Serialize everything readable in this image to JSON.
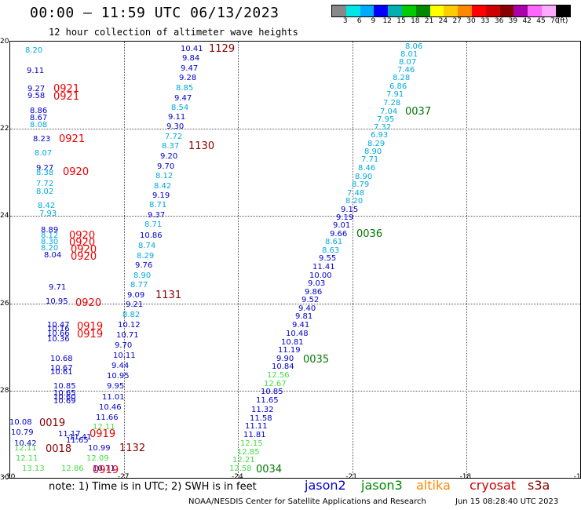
{
  "header": {
    "title": "00:00 – 11:59 UTC 06/13/2023",
    "subtitle": "12 hour collection of altimeter wave heights"
  },
  "legend": {
    "unit": "(ft)",
    "colors": [
      "#888888",
      "#00e5e5",
      "#00aaff",
      "#0000ff",
      "#00b0b0",
      "#00cc00",
      "#008800",
      "#ffff00",
      "#ffcc00",
      "#ff8800",
      "#ff0000",
      "#cc0000",
      "#880000",
      "#aa00aa",
      "#ff66ff",
      "#ffaaff",
      "#000000"
    ],
    "labels": [
      "3",
      "6",
      "9",
      "12",
      "15",
      "18",
      "21",
      "24",
      "27",
      "30",
      "33",
      "36",
      "39",
      "42",
      "45",
      "70",
      "(ft)"
    ]
  },
  "axes": {
    "y_ticks": [
      "20",
      "22",
      "24",
      "26",
      "28",
      "30"
    ],
    "x_ticks": [
      "-30",
      "-27",
      "-24",
      "-21",
      "-18",
      "-15"
    ]
  },
  "footer": {
    "note": "note:  1) Time is in UTC;  2) SWH is in feet",
    "satellites": [
      {
        "name": "jason2",
        "color": "#0000cc"
      },
      {
        "name": "jason3",
        "color": "#008800"
      },
      {
        "name": "altika",
        "color": "#ff8800"
      },
      {
        "name": "cryosat",
        "color": "#cc0000"
      },
      {
        "name": "s3a",
        "color": "#880000"
      }
    ],
    "credit": "NOAA/NESDIS Center for Satellite Applications and Research",
    "timestamp": "Jun 15 08:28:40 UTC 2023"
  },
  "colors": {
    "c3": "#00aadd",
    "c2": "#0000cc",
    "c1": "#44dd44",
    "red": "#ee0000",
    "dred": "#880000",
    "green": "#007700"
  },
  "points": [
    {
      "t": "8.20",
      "c": "c3"
    },
    {
      "t": "9.11",
      "c": "c2"
    },
    {
      "t": "9.27",
      "c": "c2"
    },
    {
      "t": "9.58",
      "c": "c2"
    },
    {
      "t": "0921",
      "c": "red"
    },
    {
      "t": "0921",
      "c": "red"
    },
    {
      "t": "8.86",
      "c": "c2"
    },
    {
      "t": "8.67",
      "c": "c2"
    },
    {
      "t": "8.08",
      "c": "c3"
    },
    {
      "t": "8.23",
      "c": "c2"
    },
    {
      "t": "0921",
      "c": "red"
    },
    {
      "t": "8.07",
      "c": "c3"
    },
    {
      "t": "9.27",
      "c": "c2"
    },
    {
      "t": "8.38",
      "c": "c3"
    },
    {
      "t": "0920",
      "c": "red"
    },
    {
      "t": "7.72",
      "c": "c3"
    },
    {
      "t": "8.02",
      "c": "c3"
    },
    {
      "t": "8.42",
      "c": "c3"
    },
    {
      "t": "7.93",
      "c": "c3"
    },
    {
      "t": "8.89",
      "c": "c2"
    },
    {
      "t": "8.12",
      "c": "c3"
    },
    {
      "t": "8.30",
      "c": "c3"
    },
    {
      "t": "8.20",
      "c": "c3"
    },
    {
      "t": "8.04",
      "c": "c2"
    },
    {
      "t": "0920",
      "c": "red"
    },
    {
      "t": "0920",
      "c": "red"
    },
    {
      "t": "0920",
      "c": "red"
    },
    {
      "t": "0920",
      "c": "red"
    },
    {
      "t": "9.71",
      "c": "c2"
    },
    {
      "t": "10.95",
      "c": "c2"
    },
    {
      "t": "0920",
      "c": "red"
    },
    {
      "t": "10.47",
      "c": "c2"
    },
    {
      "t": "10.16",
      "c": "c2"
    },
    {
      "t": "10.66",
      "c": "c2"
    },
    {
      "t": "10.36",
      "c": "c2"
    },
    {
      "t": "0919",
      "c": "red"
    },
    {
      "t": "0919",
      "c": "red"
    },
    {
      "t": "10.68",
      "c": "c2"
    },
    {
      "t": "10.67",
      "c": "c2"
    },
    {
      "t": "10.61",
      "c": "c2"
    },
    {
      "t": "10.85",
      "c": "c2"
    },
    {
      "t": "10.65",
      "c": "c2"
    },
    {
      "t": "10.60",
      "c": "c2"
    },
    {
      "t": "10.69",
      "c": "c2"
    },
    {
      "t": "10.08",
      "c": "c2"
    },
    {
      "t": "0019",
      "c": "dred"
    },
    {
      "t": "10.79",
      "c": "c2"
    },
    {
      "t": "10.42",
      "c": "c2"
    },
    {
      "t": "12.11",
      "c": "c1"
    },
    {
      "t": "0018",
      "c": "dred"
    },
    {
      "t": "12.11",
      "c": "c1"
    },
    {
      "t": "13.13",
      "c": "c1"
    },
    {
      "t": "10.41",
      "c": "c2"
    },
    {
      "t": "1129",
      "c": "dred"
    },
    {
      "t": "9.84",
      "c": "c2"
    },
    {
      "t": "9.47",
      "c": "c2"
    },
    {
      "t": "9.28",
      "c": "c2"
    },
    {
      "t": "8.85",
      "c": "c3"
    },
    {
      "t": "9.47",
      "c": "c2"
    },
    {
      "t": "8.54",
      "c": "c3"
    },
    {
      "t": "9.11",
      "c": "c2"
    },
    {
      "t": "9.30",
      "c": "c2"
    },
    {
      "t": "7.72",
      "c": "c3"
    },
    {
      "t": "8.37",
      "c": "c3"
    },
    {
      "t": "1130",
      "c": "dred"
    },
    {
      "t": "9.20",
      "c": "c2"
    },
    {
      "t": "9.70",
      "c": "c2"
    },
    {
      "t": "8.12",
      "c": "c3"
    },
    {
      "t": "8.42",
      "c": "c3"
    },
    {
      "t": "9.19",
      "c": "c2"
    },
    {
      "t": "8.71",
      "c": "c3"
    },
    {
      "t": "9.37",
      "c": "c2"
    },
    {
      "t": "8.71",
      "c": "c3"
    },
    {
      "t": "10.86",
      "c": "c2"
    },
    {
      "t": "8.74",
      "c": "c3"
    },
    {
      "t": "8.29",
      "c": "c3"
    },
    {
      "t": "9.76",
      "c": "c2"
    },
    {
      "t": "8.90",
      "c": "c3"
    },
    {
      "t": "8.77",
      "c": "c3"
    },
    {
      "t": "9.09",
      "c": "c2"
    },
    {
      "t": "1131",
      "c": "dred"
    },
    {
      "t": "9.21",
      "c": "c2"
    },
    {
      "t": "8.82",
      "c": "c3"
    },
    {
      "t": "10.12",
      "c": "c2"
    },
    {
      "t": "10.71",
      "c": "c2"
    },
    {
      "t": "9.70",
      "c": "c2"
    },
    {
      "t": "10.11",
      "c": "c2"
    },
    {
      "t": "9.44",
      "c": "c2"
    },
    {
      "t": "10.95",
      "c": "c2"
    },
    {
      "t": "9.95",
      "c": "c2"
    },
    {
      "t": "11.01",
      "c": "c2"
    },
    {
      "t": "10.46",
      "c": "c2"
    },
    {
      "t": "11.66",
      "c": "c2"
    },
    {
      "t": "12.11",
      "c": "c1"
    },
    {
      "t": "11.17",
      "c": "c2"
    },
    {
      "t": "0919",
      "c": "red"
    },
    {
      "t": "11.65",
      "c": "c2"
    },
    {
      "t": "11.41",
      "c": "c2"
    },
    {
      "t": "10.99",
      "c": "c2"
    },
    {
      "t": "1132",
      "c": "dred"
    },
    {
      "t": "12.09",
      "c": "c1"
    },
    {
      "t": "12.86",
      "c": "c1"
    },
    {
      "t": "10.71",
      "c": "c2"
    },
    {
      "t": "0919",
      "c": "red"
    },
    {
      "t": "8.06",
      "c": "c3"
    },
    {
      "t": "8.01",
      "c": "c3"
    },
    {
      "t": "8.07",
      "c": "c3"
    },
    {
      "t": "7.46",
      "c": "c3"
    },
    {
      "t": "8.28",
      "c": "c3"
    },
    {
      "t": "6.86",
      "c": "c3"
    },
    {
      "t": "7.91",
      "c": "c3"
    },
    {
      "t": "7.28",
      "c": "c3"
    },
    {
      "t": "7.04",
      "c": "c3"
    },
    {
      "t": "0037",
      "c": "green"
    },
    {
      "t": "7.95",
      "c": "c3"
    },
    {
      "t": "7.32",
      "c": "c3"
    },
    {
      "t": "6.93",
      "c": "c3"
    },
    {
      "t": "8.29",
      "c": "c3"
    },
    {
      "t": "8.90",
      "c": "c3"
    },
    {
      "t": "7.71",
      "c": "c3"
    },
    {
      "t": "8.46",
      "c": "c3"
    },
    {
      "t": "8.90",
      "c": "c3"
    },
    {
      "t": "8.79",
      "c": "c3"
    },
    {
      "t": "7.48",
      "c": "c3"
    },
    {
      "t": "8.20",
      "c": "c3"
    },
    {
      "t": "9.15",
      "c": "c2"
    },
    {
      "t": "9.19",
      "c": "c2"
    },
    {
      "t": "9.01",
      "c": "c2"
    },
    {
      "t": "9.66",
      "c": "c2"
    },
    {
      "t": "0036",
      "c": "green"
    },
    {
      "t": "8.61",
      "c": "c3"
    },
    {
      "t": "8.63",
      "c": "c3"
    },
    {
      "t": "9.55",
      "c": "c2"
    },
    {
      "t": "11.41",
      "c": "c2"
    },
    {
      "t": "10.00",
      "c": "c2"
    },
    {
      "t": "9.03",
      "c": "c2"
    },
    {
      "t": "9.86",
      "c": "c2"
    },
    {
      "t": "9.52",
      "c": "c2"
    },
    {
      "t": "9.40",
      "c": "c2"
    },
    {
      "t": "9.81",
      "c": "c2"
    },
    {
      "t": "9.41",
      "c": "c2"
    },
    {
      "t": "10.48",
      "c": "c2"
    },
    {
      "t": "10.81",
      "c": "c2"
    },
    {
      "t": "11.19",
      "c": "c2"
    },
    {
      "t": "9.90",
      "c": "c2"
    },
    {
      "t": "0035",
      "c": "green"
    },
    {
      "t": "10.84",
      "c": "c2"
    },
    {
      "t": "12.56",
      "c": "c1"
    },
    {
      "t": "12.67",
      "c": "c1"
    },
    {
      "t": "10.85",
      "c": "c2"
    },
    {
      "t": "11.65",
      "c": "c2"
    },
    {
      "t": "11.32",
      "c": "c2"
    },
    {
      "t": "11.58",
      "c": "c2"
    },
    {
      "t": "11.11",
      "c": "c2"
    },
    {
      "t": "11.81",
      "c": "c2"
    },
    {
      "t": "12.15",
      "c": "c1"
    },
    {
      "t": "12.85",
      "c": "c1"
    },
    {
      "t": "12.21",
      "c": "c1"
    },
    {
      "t": "12.58",
      "c": "c1"
    },
    {
      "t": "0034",
      "c": "green"
    }
  ]
}
